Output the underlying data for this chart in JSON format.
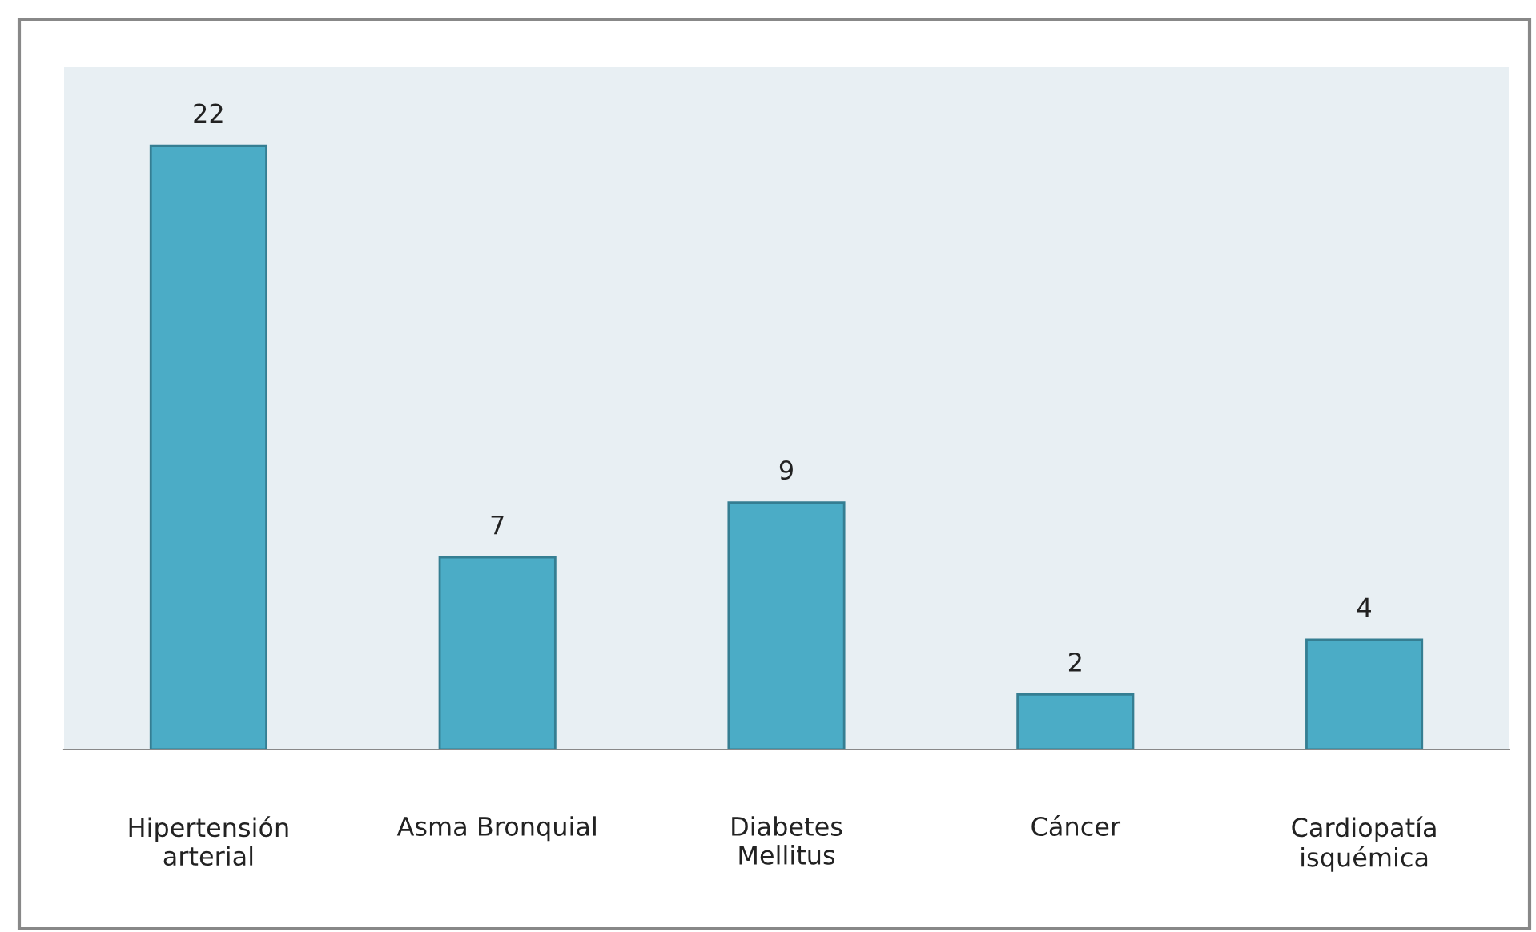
{
  "chart_data": {
    "type": "bar",
    "categories": [
      "Hipertensión\narterial",
      "Asma Bronquial",
      "Diabetes\nMellitus",
      "Cáncer",
      "Cardiopatía\nisquémica"
    ],
    "values": [
      22,
      7,
      9,
      2,
      4
    ],
    "color": "#4bacc6",
    "data_labels": true,
    "grid": false,
    "legend": false
  }
}
